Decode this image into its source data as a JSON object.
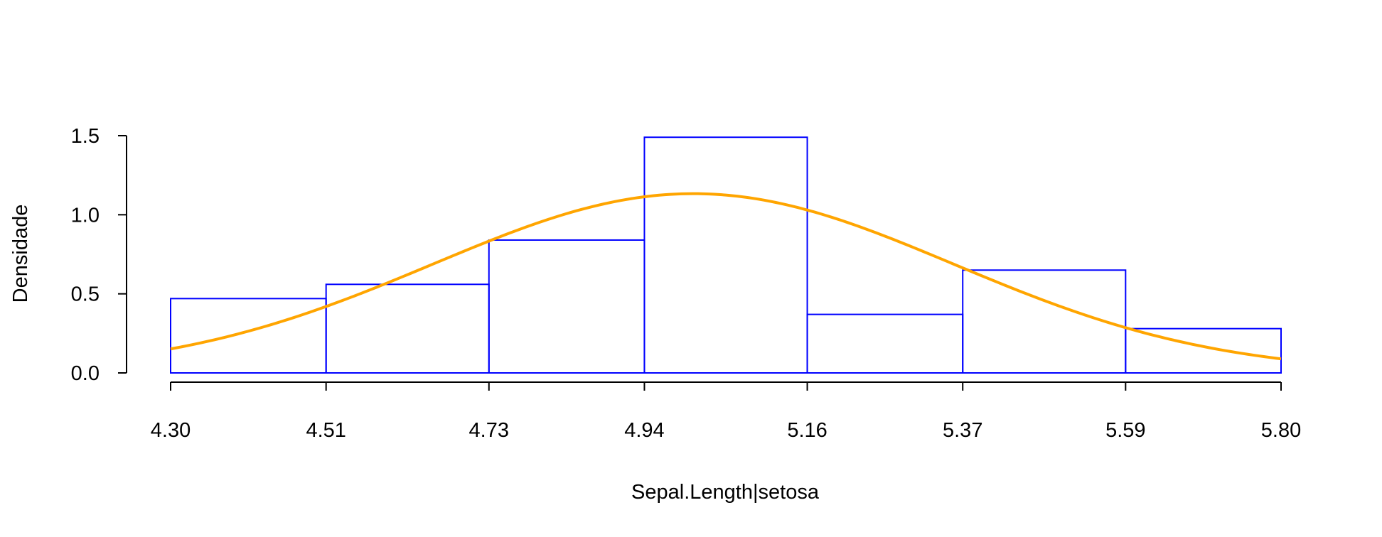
{
  "chart_data": {
    "type": "bar",
    "title": "",
    "xlabel": "Sepal.Length|setosa",
    "ylabel": "Densidade",
    "bins": [
      {
        "x0": 4.3,
        "x1": 4.51,
        "density": 0.47
      },
      {
        "x0": 4.51,
        "x1": 4.73,
        "density": 0.56
      },
      {
        "x0": 4.73,
        "x1": 4.94,
        "density": 0.84
      },
      {
        "x0": 4.94,
        "x1": 5.16,
        "density": 1.49
      },
      {
        "x0": 5.16,
        "x1": 5.37,
        "density": 0.37
      },
      {
        "x0": 5.37,
        "x1": 5.59,
        "density": 0.65
      },
      {
        "x0": 5.59,
        "x1": 5.8,
        "density": 0.28
      }
    ],
    "x_ticks": [
      "4.30",
      "4.51",
      "4.73",
      "4.94",
      "5.16",
      "5.37",
      "5.59",
      "5.80"
    ],
    "y_ticks": [
      "0.0",
      "0.5",
      "1.0",
      "1.5"
    ],
    "xlim": [
      4.3,
      5.8
    ],
    "ylim": [
      0,
      1.5
    ],
    "density_curve": {
      "type": "normal",
      "mean": 5.006,
      "sd": 0.352
    },
    "grid": false,
    "colors": {
      "bars": "#0000ff",
      "curve": "#ffa500",
      "axes": "#000000"
    }
  }
}
